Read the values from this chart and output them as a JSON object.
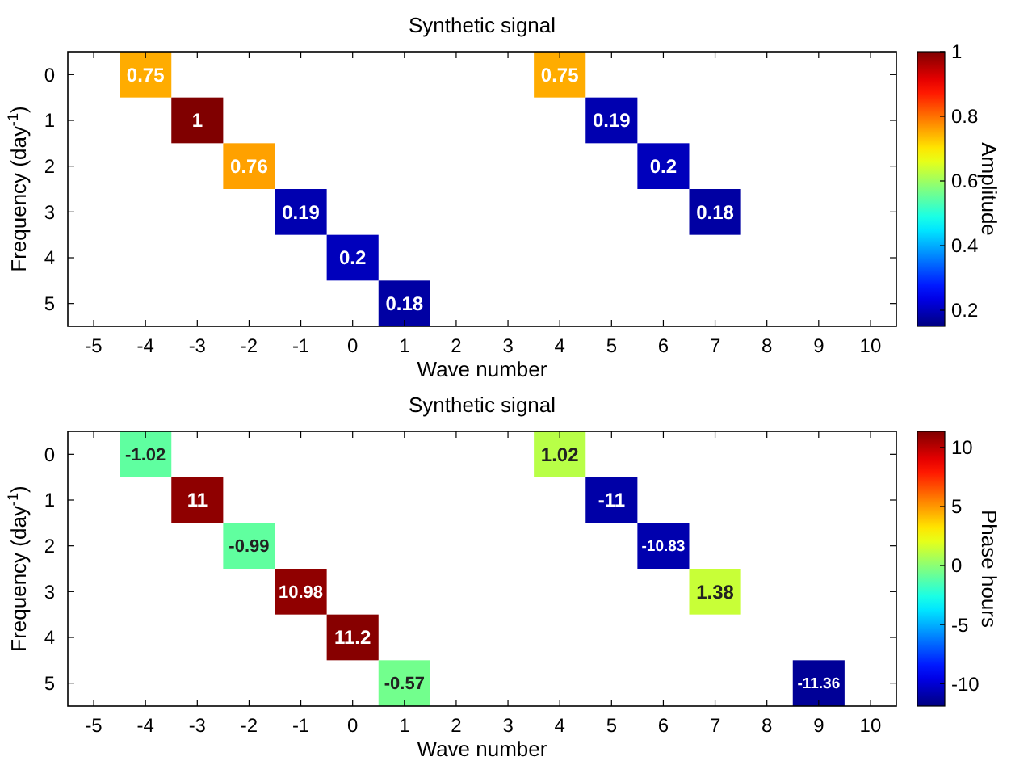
{
  "chart_data": [
    {
      "type": "heatmap",
      "title": "Synthetic signal",
      "xlabel": "Wave number",
      "ylabel": "Frequency (day$^{-1}$)",
      "clabel": "Amplitude",
      "categories": [
        "-5",
        "-4",
        "-3",
        "-2",
        "-1",
        "0",
        "1",
        "2",
        "3",
        "4",
        "5",
        "6",
        "7",
        "8",
        "9",
        "10"
      ],
      "y_categories": [
        "0",
        "1",
        "2",
        "3",
        "4",
        "5"
      ],
      "cells": [
        [
          null,
          0.75,
          null,
          null,
          null,
          null,
          null,
          null,
          null,
          0.75,
          null,
          null,
          null,
          null,
          null,
          null
        ],
        [
          null,
          null,
          1,
          null,
          null,
          null,
          null,
          null,
          null,
          null,
          0.19,
          null,
          null,
          null,
          null,
          null
        ],
        [
          null,
          null,
          null,
          0.76,
          null,
          null,
          null,
          null,
          null,
          null,
          null,
          0.2,
          null,
          null,
          null,
          null
        ],
        [
          null,
          null,
          null,
          null,
          0.19,
          null,
          null,
          null,
          null,
          null,
          null,
          null,
          0.18,
          null,
          null,
          null
        ],
        [
          null,
          null,
          null,
          null,
          null,
          0.2,
          null,
          null,
          null,
          null,
          null,
          null,
          null,
          null,
          null,
          null
        ],
        [
          null,
          null,
          null,
          null,
          null,
          null,
          0.18,
          null,
          null,
          null,
          null,
          null,
          null,
          null,
          null,
          null
        ]
      ],
      "data_labels": true,
      "clim": [
        0.15,
        1
      ],
      "cticks": [
        0.2,
        0.4,
        0.6,
        0.8,
        1
      ]
    },
    {
      "type": "heatmap",
      "title": "Synthetic signal",
      "xlabel": "Wave number",
      "ylabel": "Frequency (day$^{-1}$)",
      "clabel": "Phase hours",
      "categories": [
        "-5",
        "-4",
        "-3",
        "-2",
        "-1",
        "0",
        "1",
        "2",
        "3",
        "4",
        "5",
        "6",
        "7",
        "8",
        "9",
        "10"
      ],
      "y_categories": [
        "0",
        "1",
        "2",
        "3",
        "4",
        "5"
      ],
      "cells": [
        [
          null,
          -1.02,
          null,
          null,
          null,
          null,
          null,
          null,
          null,
          1.02,
          null,
          null,
          null,
          null,
          null,
          null
        ],
        [
          null,
          null,
          11,
          null,
          null,
          null,
          null,
          null,
          null,
          null,
          -11,
          null,
          null,
          null,
          null,
          null
        ],
        [
          null,
          null,
          null,
          -0.99,
          null,
          null,
          null,
          null,
          null,
          null,
          null,
          -10.83,
          null,
          null,
          null,
          null
        ],
        [
          null,
          null,
          null,
          null,
          10.98,
          null,
          null,
          null,
          null,
          null,
          null,
          null,
          1.38,
          null,
          null,
          null
        ],
        [
          null,
          null,
          null,
          null,
          null,
          11.2,
          null,
          null,
          null,
          null,
          null,
          null,
          null,
          null,
          null,
          null
        ],
        [
          null,
          null,
          null,
          null,
          null,
          null,
          -0.57,
          null,
          null,
          null,
          null,
          null,
          null,
          null,
          -11.36,
          null
        ]
      ],
      "data_labels": true,
      "clim": [
        -11.9,
        11.36
      ],
      "cticks": [
        -10,
        -5,
        0,
        5,
        10
      ]
    }
  ]
}
